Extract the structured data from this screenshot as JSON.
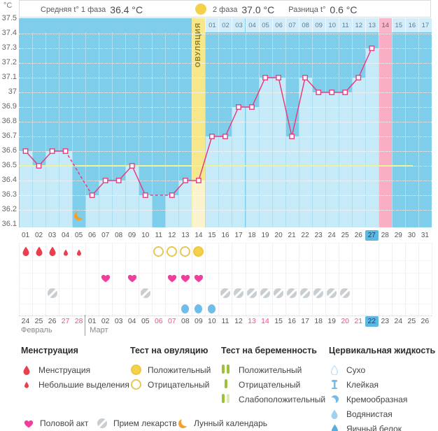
{
  "header": {
    "unit": "°C",
    "phase1_label": "Средняя t° 1 фаза",
    "phase1_value": "36.4 °C",
    "phase2_label": "2 фаза",
    "phase2_value": "37.0 °C",
    "diff_label": "Разница t°",
    "diff_value": "0.6 °C"
  },
  "chart_data": {
    "type": "line",
    "ylabel": "°C",
    "ylim": [
      36.1,
      37.5
    ],
    "yticks": [
      "37.5",
      "37.4",
      "37.3",
      "37.2",
      "37.1",
      "37",
      "36.9",
      "36.8",
      "36.7",
      "36.6",
      "36.5",
      "36.4",
      "36.3",
      "36.2",
      "36.1"
    ],
    "x_cycle_days": [
      "01",
      "02",
      "03",
      "04",
      "05",
      "06",
      "07",
      "08",
      "09",
      "10",
      "11",
      "12",
      "13",
      "14",
      "15",
      "16",
      "17",
      "18",
      "19",
      "20",
      "21",
      "22",
      "23",
      "24",
      "25",
      "26",
      "27",
      "28",
      "29",
      "30",
      "31"
    ],
    "temperatures": [
      36.6,
      36.5,
      36.6,
      36.6,
      null,
      36.3,
      36.4,
      36.4,
      36.5,
      36.3,
      null,
      36.3,
      36.4,
      36.4,
      36.7,
      36.7,
      36.9,
      36.9,
      37.1,
      37.1,
      36.7,
      37.1,
      37.0,
      37.0,
      37.0,
      37.1,
      37.3,
      null,
      null,
      null,
      null
    ],
    "coverline": 36.5,
    "average_phase1": 36.4,
    "average_phase2": 37.0,
    "difference": 0.6,
    "ovulation_day": 14,
    "ovulation_label": "ОВУЛЯЦИЯ",
    "expected_period_day": 28,
    "current_cycle_day": 27,
    "dpo_labels": [
      "01",
      "02",
      "03",
      "04",
      "05",
      "06",
      "07",
      "08",
      "09",
      "10",
      "11",
      "12",
      "13",
      "14",
      "15",
      "16",
      "17"
    ],
    "missing_measurement_days": [
      5,
      11
    ],
    "grid": true,
    "legend_position": "bottom"
  },
  "events": {
    "menstruation_heavy_days": [
      1,
      2,
      3
    ],
    "menstruation_light_days": [
      4,
      5
    ],
    "ovulation_test_negative_days": [
      11,
      12,
      13
    ],
    "ovulation_test_positive_days": [
      14
    ],
    "intercourse_days": [
      7,
      9,
      12,
      13,
      14
    ],
    "medication_days": [
      3,
      10,
      16,
      17,
      18,
      19,
      20,
      21,
      22,
      23,
      24,
      25
    ],
    "cervical_fluid_days": [
      13,
      14,
      15
    ],
    "lunar_day": 5
  },
  "calendar": {
    "dates": [
      "24",
      "25",
      "26",
      "27",
      "28",
      "01",
      "02",
      "03",
      "04",
      "05",
      "06",
      "07",
      "08",
      "09",
      "10",
      "11",
      "12",
      "13",
      "14",
      "15",
      "16",
      "17",
      "18",
      "19",
      "20",
      "21",
      "22",
      "23",
      "24",
      "25",
      "26"
    ],
    "weekend_indices": [
      3,
      4,
      10,
      11,
      17,
      18,
      24,
      25
    ],
    "current_index": 26,
    "march_start_index": 5,
    "months": {
      "february": "Февраль",
      "march": "Март"
    }
  },
  "legend": {
    "menstruation": {
      "title": "Менструация",
      "items": [
        {
          "icon": "drop",
          "label": "Менструация"
        },
        {
          "icon": "drop-small",
          "label": "Небольшие выделения"
        }
      ]
    },
    "ovulation_test": {
      "title": "Тест на овуляцию",
      "items": [
        {
          "icon": "otest-pos",
          "label": "Положительный"
        },
        {
          "icon": "otest-neg",
          "label": "Отрицательный"
        }
      ]
    },
    "pregnancy_test": {
      "title": "Тест на беременность",
      "items": [
        {
          "icon": "preg-pos",
          "label": "Положительный"
        },
        {
          "icon": "preg-neg",
          "label": "Отрицательный"
        },
        {
          "icon": "preg-weak",
          "label": "Слабоположительный"
        }
      ]
    },
    "cervical_fluid": {
      "title": "Цервикальная жидкость",
      "items": [
        {
          "icon": "cf-dry",
          "label": "Сухо"
        },
        {
          "icon": "cf-sticky",
          "label": "Клейкая"
        },
        {
          "icon": "cf-creamy",
          "label": "Кремообразная"
        },
        {
          "icon": "cf-watery",
          "label": "Водянистая"
        },
        {
          "icon": "cf-eggwhite",
          "label": "Яичный белок"
        }
      ]
    },
    "extra_items": [
      {
        "icon": "heart",
        "label": "Половой акт"
      },
      {
        "icon": "pill",
        "label": "Прием лекарств"
      },
      {
        "icon": "moon",
        "label": "Лунный календарь"
      }
    ]
  },
  "colors": {
    "line": "#e23e81",
    "chart_bg": "#7ecdea",
    "bar": "#c6eaf8",
    "bar_ovulation": "#fbf3cd",
    "ovulation_column": "#f6e78a",
    "period_column": "#f9aec3",
    "dpo_row_bg": "#d2ecf9",
    "dpo_period_bg": "#f7b6ca",
    "coverline": "#eef29a",
    "menstruation": "#e8404c",
    "test_yellow": "#f5d04a",
    "heart": "#f13d9b",
    "pill": "#c9ced3",
    "cervical": "#6fbde9",
    "pregnancy_green": "#9cc13c",
    "pregnancy_green_pale": "#dce9b9",
    "moon": "#f5a02c",
    "highlight": "#5cb8e2",
    "weekend": "#ee4f93"
  }
}
